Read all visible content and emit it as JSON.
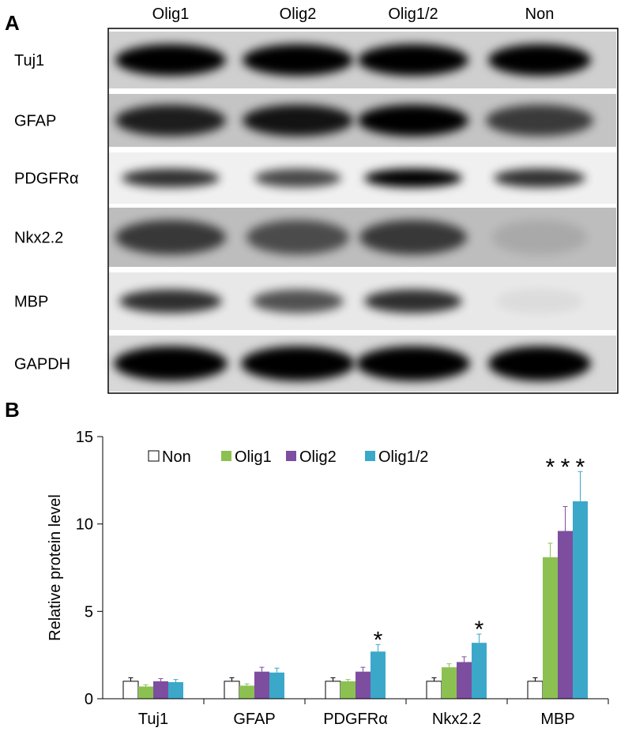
{
  "panels": [
    "A",
    "B"
  ],
  "blot": {
    "columns": [
      "Olig1",
      "Olig2",
      "Olig1/2",
      "Non"
    ],
    "rows": [
      "Tuj1",
      "GFAP",
      "PDGFRα",
      "Nkx2.2",
      "MBP",
      "GAPDH"
    ]
  },
  "chart_data": {
    "type": "bar",
    "y_label": "Relative protein level",
    "categories": [
      "Tuj1",
      "GFAP",
      "PDGFRα",
      "Nkx2.2",
      "MBP"
    ],
    "series": [
      {
        "name": "Non",
        "color": "#ffffff",
        "values": [
          1.0,
          1.0,
          1.0,
          1.0,
          1.0
        ],
        "errors": [
          0.2,
          0.2,
          0.2,
          0.2,
          0.2
        ]
      },
      {
        "name": "Olig1",
        "color": "#8cc152",
        "values": [
          0.7,
          0.75,
          1.0,
          1.8,
          8.1
        ],
        "errors": [
          0.1,
          0.1,
          0.1,
          0.2,
          0.8
        ]
      },
      {
        "name": "Olig2",
        "color": "#7d4e9f",
        "values": [
          1.0,
          1.55,
          1.55,
          2.1,
          9.6
        ],
        "errors": [
          0.15,
          0.25,
          0.25,
          0.3,
          1.4
        ]
      },
      {
        "name": "Olig1/2",
        "color": "#3ba8c9",
        "values": [
          0.95,
          1.5,
          2.7,
          3.2,
          11.3
        ],
        "errors": [
          0.15,
          0.25,
          0.4,
          0.5,
          1.7
        ]
      }
    ],
    "ylim": [
      0,
      15
    ],
    "yticks": [
      0,
      5,
      10,
      15
    ],
    "legend": "top-left",
    "annotations": [
      {
        "text": "*",
        "category": "PDGFRα",
        "series": [
          "Olig1/2"
        ]
      },
      {
        "text": "*",
        "category": "Nkx2.2",
        "series": [
          "Olig1/2"
        ]
      },
      {
        "text": "*",
        "category": "MBP",
        "series": [
          "Olig1",
          "Olig2",
          "Olig1/2"
        ]
      }
    ]
  }
}
